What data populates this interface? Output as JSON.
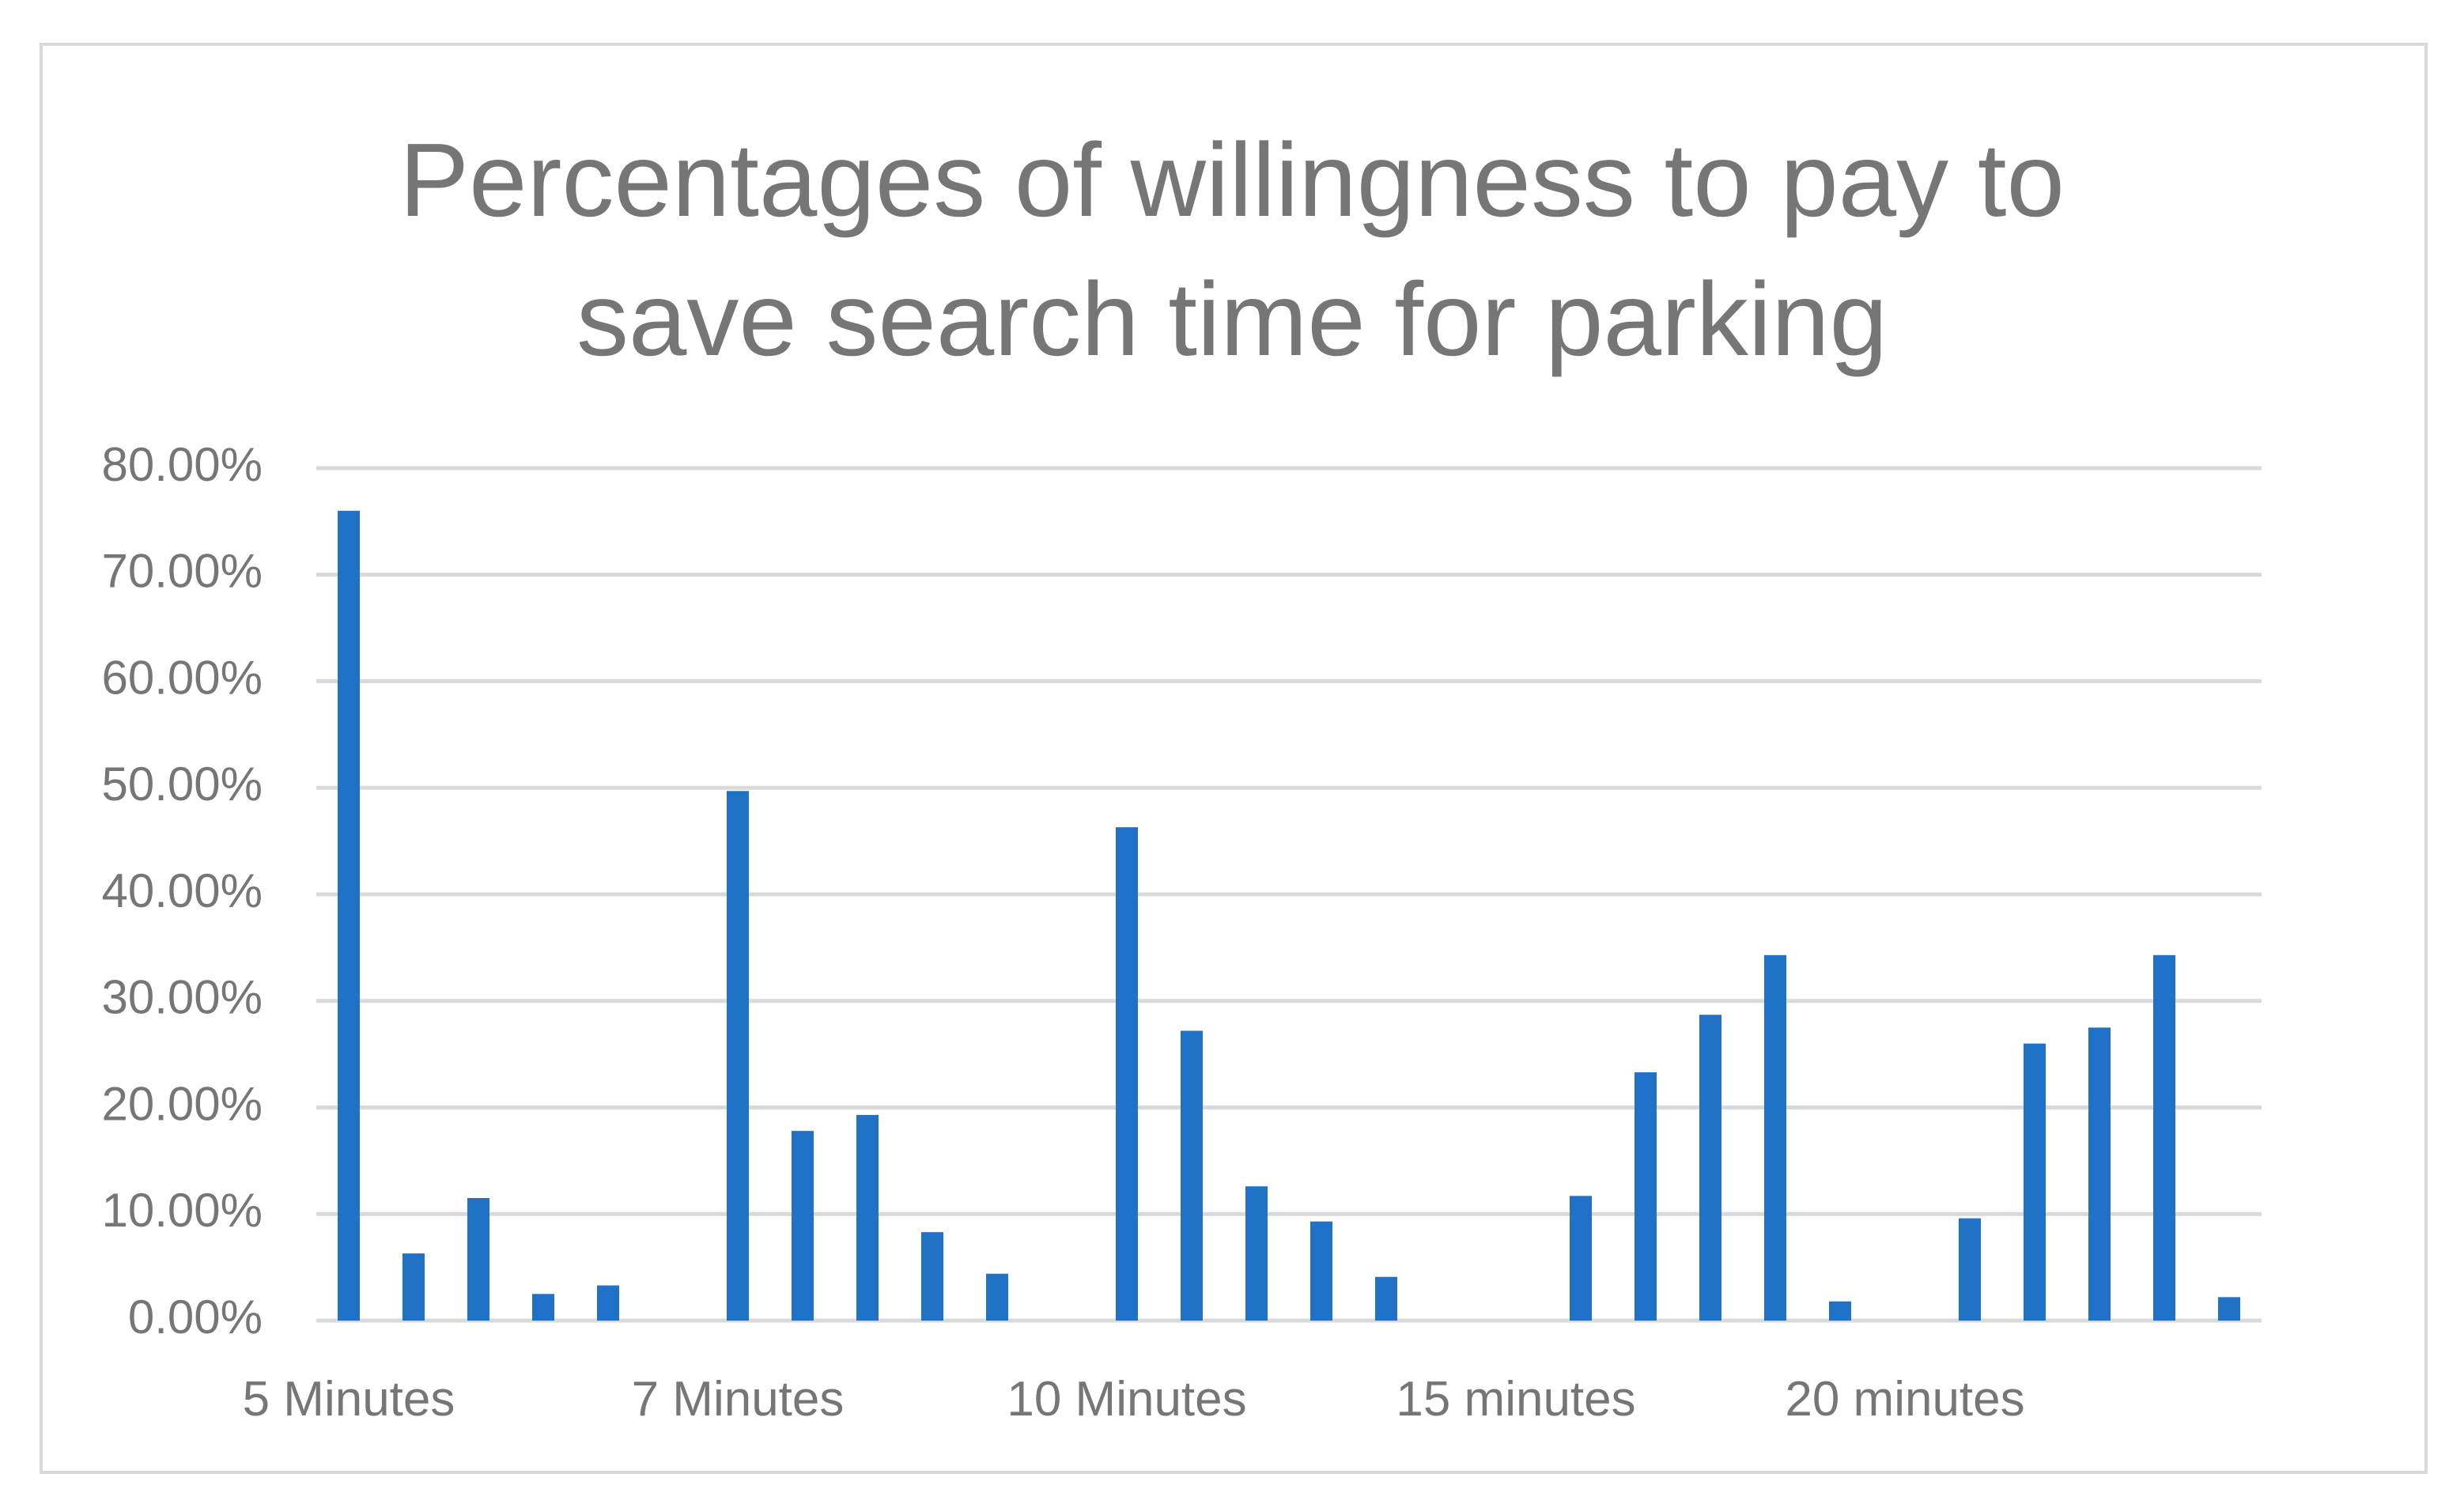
{
  "chart_data": {
    "type": "bar",
    "title": "Percentages of willingness to pay to\nsave search time for parking",
    "xlabel": "",
    "ylabel": "",
    "ylim": [
      0,
      0.8
    ],
    "yticks": [
      0,
      0.1,
      0.2,
      0.3,
      0.4,
      0.5,
      0.6,
      0.7,
      0.8
    ],
    "ytick_labels": [
      "0.00%",
      "10.00%",
      "20.00%",
      "30.00%",
      "40.00%",
      "50.00%",
      "60.00%",
      "70.00%",
      "80.00%"
    ],
    "grid": true,
    "legend": "none",
    "groups": [
      {
        "label": "5 Minutes",
        "values": [
          0.76,
          0.063,
          0.115,
          0.025,
          0.033,
          0
        ]
      },
      {
        "label": "7 Minutes",
        "values": [
          0.497,
          0.178,
          0.193,
          0.083,
          0.044,
          0
        ]
      },
      {
        "label": "10 Minutes",
        "values": [
          0.463,
          0.272,
          0.126,
          0.093,
          0.041,
          0
        ]
      },
      {
        "label": "15 minutes",
        "values": [
          0,
          0.117,
          0.233,
          0.287,
          0.343,
          0.018
        ]
      },
      {
        "label": "20 minutes",
        "values": [
          0,
          0.096,
          0.26,
          0.275,
          0.343,
          0.022
        ]
      }
    ],
    "colors": {
      "bar": "#1f72c8",
      "grid": "#d9d9d9",
      "text": "#767676",
      "border": "#d9d9d9"
    }
  }
}
